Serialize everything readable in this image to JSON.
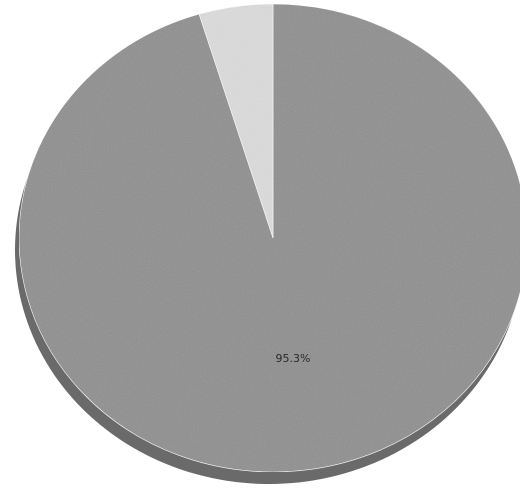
{
  "chart_data": {
    "type": "pie",
    "title": "",
    "slices": [
      {
        "label": "95.3%",
        "value": 95.3,
        "color": "#8f8f8f",
        "shade_color": "#6a6a6a"
      },
      {
        "label": "",
        "value": 4.7,
        "color": "#dcdcdc",
        "shade_color": "#a8a8a8"
      }
    ],
    "start": "12 o'clock",
    "direction": "clockwise",
    "style": "3d-tilted",
    "legend": "none"
  }
}
